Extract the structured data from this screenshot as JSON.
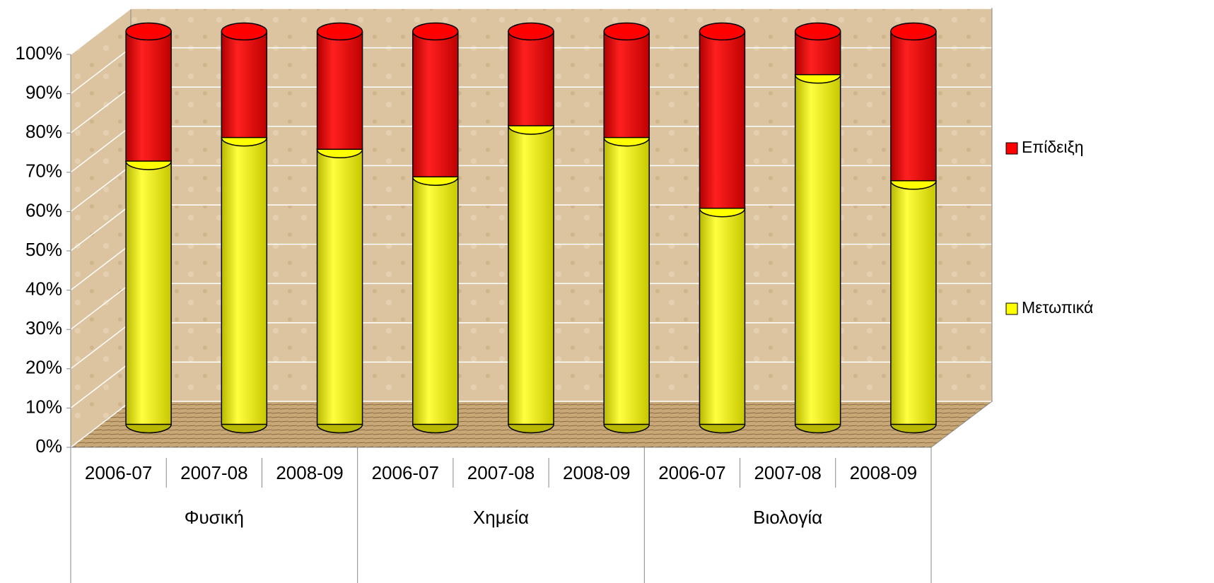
{
  "chart_data": {
    "type": "bar3d-stacked",
    "categories": [
      "2006-07",
      "2007-08",
      "2008-09",
      "2006-07",
      "2007-08",
      "2008-09",
      "2006-07",
      "2007-08",
      "2008-09"
    ],
    "groups": [
      "Φυσική",
      "Χημεία",
      "Βιολογία"
    ],
    "series": [
      {
        "name": "Μετωπικά",
        "color": "#ffff00",
        "values": [
          67,
          73,
          70,
          63,
          76,
          73,
          55,
          89,
          62
        ]
      },
      {
        "name": "Επίδειξη",
        "color": "#ff0000",
        "values": [
          33,
          27,
          30,
          37,
          24,
          27,
          45,
          11,
          38
        ]
      }
    ],
    "ylim": [
      0,
      100
    ],
    "yticks": [
      {
        "value": 0,
        "label": "0%"
      },
      {
        "value": 10,
        "label": "10%"
      },
      {
        "value": 20,
        "label": "20%"
      },
      {
        "value": 30,
        "label": "30%"
      },
      {
        "value": 40,
        "label": "40%"
      },
      {
        "value": 50,
        "label": "50%"
      },
      {
        "value": 60,
        "label": "60%"
      },
      {
        "value": 70,
        "label": "70%"
      },
      {
        "value": 80,
        "label": "80%"
      },
      {
        "value": 90,
        "label": "90%"
      },
      {
        "value": 100,
        "label": "100%"
      }
    ],
    "grid": true
  }
}
